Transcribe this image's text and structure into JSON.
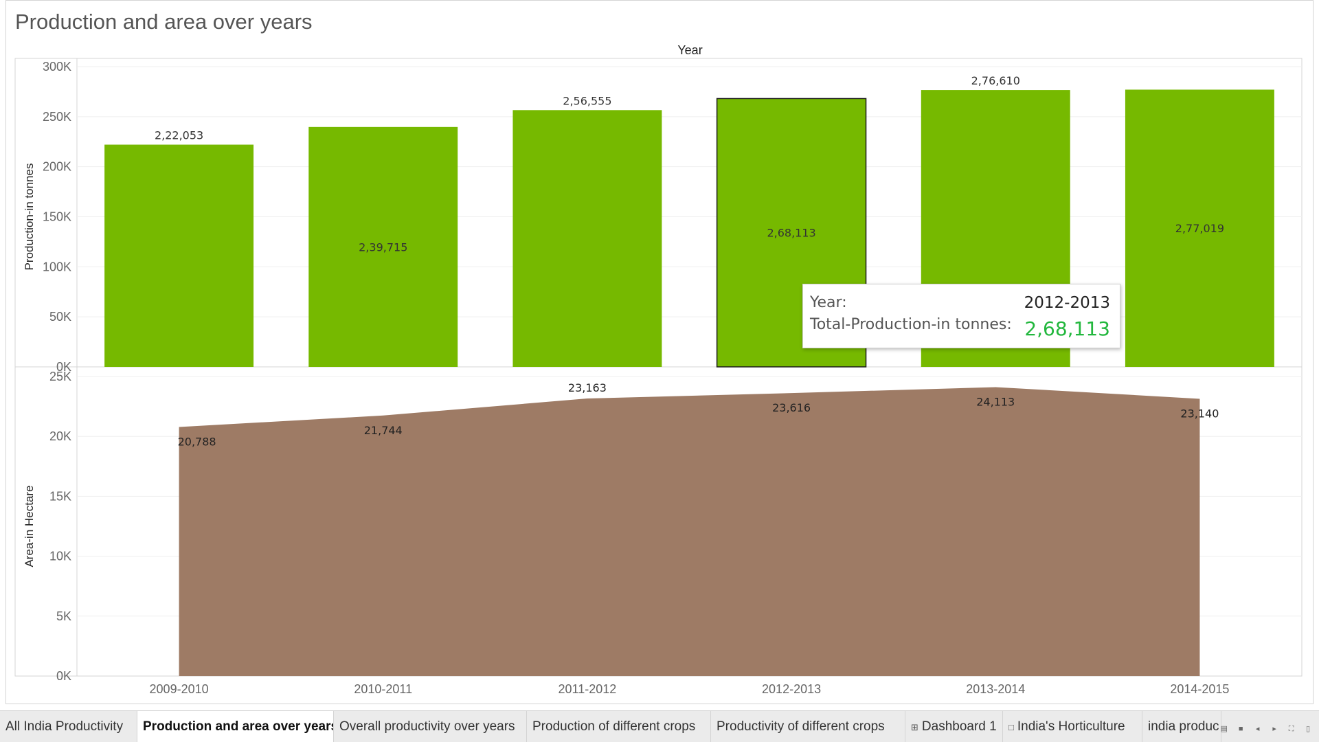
{
  "title": "Production and area over years",
  "chart_data": [
    {
      "type": "bar",
      "categories": [
        "2009-2010",
        "2010-2011",
        "2011-2012",
        "2012-2013",
        "2013-2014",
        "2014-2015"
      ],
      "xlabel": "Year",
      "ylabel": "Production-in tonnes",
      "ylim": [
        0,
        300000
      ],
      "yticks": [
        "0K",
        "50K",
        "100K",
        "150K",
        "200K",
        "250K",
        "300K"
      ],
      "color": "#76b900",
      "highlighted_category": "2012-2013",
      "values": [
        222053,
        239715,
        256555,
        268113,
        276610,
        277019
      ],
      "value_labels": [
        "2,22,053",
        "2,39,715",
        "2,56,555",
        "2,68,113",
        "2,76,610",
        "2,77,019"
      ],
      "label_inside": [
        false,
        true,
        false,
        true,
        false,
        true
      ],
      "grid": true
    },
    {
      "type": "area",
      "categories": [
        "2009-2010",
        "2010-2011",
        "2011-2012",
        "2012-2013",
        "2013-2014",
        "2014-2015"
      ],
      "xlabel": "Year",
      "ylabel": "Area-in Hectare",
      "ylim": [
        0,
        25000
      ],
      "yticks": [
        "0K",
        "5K",
        "10K",
        "15K",
        "20K",
        "25K"
      ],
      "color": "#9e7b65",
      "values": [
        20788,
        21744,
        23163,
        23616,
        24113,
        23140
      ],
      "value_labels": [
        "20,788",
        "21,744",
        "23,163",
        "23,616",
        "24,113",
        "23,140"
      ],
      "label_above": [
        false,
        false,
        true,
        false,
        false,
        false
      ],
      "grid": true
    }
  ],
  "tooltip": {
    "year_label": "Year:",
    "year_value": "2012-2013",
    "production_label": "Total-Production-in tonnes:",
    "production_value": "2,68,113",
    "value_color": "#22b73d"
  },
  "tabs": [
    {
      "label": "All India Productivity",
      "active": false,
      "icon": ""
    },
    {
      "label": "Production and area over years",
      "active": true,
      "icon": ""
    },
    {
      "label": "Overall productivity over years",
      "active": false,
      "icon": ""
    },
    {
      "label": "Production of different crops",
      "active": false,
      "icon": ""
    },
    {
      "label": "Productivity of different crops",
      "active": false,
      "icon": ""
    },
    {
      "label": "Dashboard 1",
      "active": false,
      "icon": "dashboard-icon"
    },
    {
      "label": "India's Horticulture",
      "active": false,
      "icon": "story-icon"
    },
    {
      "label": "india produc",
      "active": false,
      "icon": ""
    }
  ]
}
